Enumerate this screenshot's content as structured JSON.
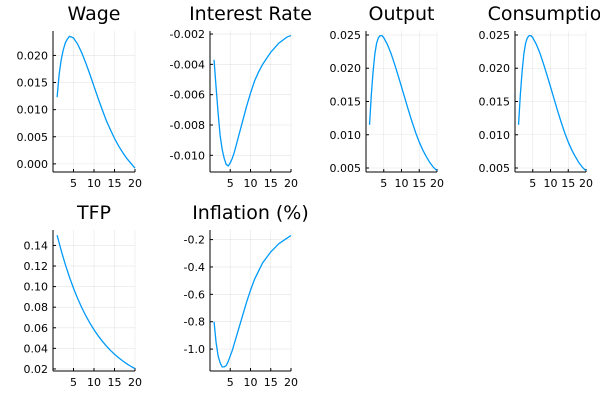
{
  "chart_data": [
    {
      "type": "line",
      "title": "Wage",
      "xlim": [
        0,
        20
      ],
      "ylim": [
        -0.0015,
        0.0245
      ],
      "xticks": [
        5,
        10,
        15,
        20
      ],
      "xtick_labels": [
        "5",
        "10",
        "15",
        "20"
      ],
      "yticks": [
        0.0,
        0.005,
        0.01,
        0.015,
        0.02
      ],
      "ytick_labels": [
        "0.000",
        "0.005",
        "0.010",
        "0.015",
        "0.020"
      ],
      "grid": true,
      "legend": "none",
      "series": [
        {
          "color": "#009af9",
          "x": [
            1,
            1.5,
            2,
            2.5,
            3,
            3.5,
            4,
            4.5,
            5,
            6,
            7,
            8,
            9,
            10,
            11,
            12,
            13,
            14,
            15,
            16,
            17,
            18,
            19,
            20
          ],
          "y": [
            0.0123,
            0.0165,
            0.0192,
            0.021,
            0.0223,
            0.023,
            0.0235,
            0.0234,
            0.0232,
            0.0221,
            0.0205,
            0.0186,
            0.0165,
            0.0143,
            0.0121,
            0.01,
            0.008,
            0.0063,
            0.0047,
            0.0033,
            0.0021,
            0.001,
            0.0001,
            -0.0008
          ]
        }
      ]
    },
    {
      "type": "line",
      "title": "Interest Rate",
      "xlim": [
        0,
        20
      ],
      "ylim": [
        -0.0111,
        -0.0018
      ],
      "xticks": [
        5,
        10,
        15,
        20
      ],
      "xtick_labels": [
        "5",
        "10",
        "15",
        "20"
      ],
      "yticks": [
        -0.01,
        -0.008,
        -0.006,
        -0.004,
        -0.002
      ],
      "ytick_labels": [
        "-0.010",
        "-0.008",
        "-0.006",
        "-0.004",
        "-0.002"
      ],
      "grid": true,
      "legend": "none",
      "series": [
        {
          "color": "#009af9",
          "x": [
            1,
            1.5,
            2,
            2.5,
            3,
            3.5,
            4,
            4.5,
            5,
            5.5,
            6,
            7,
            8,
            9,
            10,
            11,
            12,
            13,
            14,
            15,
            16,
            17,
            18,
            19,
            20
          ],
          "y": [
            -0.0037,
            -0.0055,
            -0.0072,
            -0.0087,
            -0.0096,
            -0.0102,
            -0.0106,
            -0.0107,
            -0.0105,
            -0.0102,
            -0.0098,
            -0.0088,
            -0.0078,
            -0.0068,
            -0.0059,
            -0.0051,
            -0.0045,
            -0.004,
            -0.0036,
            -0.0032,
            -0.0029,
            -0.0026,
            -0.0024,
            -0.0022,
            -0.0021
          ]
        }
      ]
    },
    {
      "type": "line",
      "title": "Output",
      "xlim": [
        0,
        20
      ],
      "ylim": [
        0.0044,
        0.0256
      ],
      "xticks": [
        5,
        10,
        15,
        20
      ],
      "xtick_labels": [
        "5",
        "10",
        "15",
        "20"
      ],
      "yticks": [
        0.005,
        0.01,
        0.015,
        0.02,
        0.025
      ],
      "ytick_labels": [
        "0.005",
        "0.010",
        "0.015",
        "0.020",
        "0.025"
      ],
      "grid": true,
      "legend": "none",
      "series": [
        {
          "color": "#009af9",
          "x": [
            1,
            1.5,
            2,
            2.5,
            3,
            3.5,
            4,
            4.5,
            5,
            6,
            7,
            8,
            9,
            10,
            11,
            12,
            13,
            14,
            15,
            16,
            17,
            18,
            19,
            20
          ],
          "y": [
            0.0115,
            0.016,
            0.0195,
            0.0222,
            0.0238,
            0.0246,
            0.0249,
            0.0249,
            0.0246,
            0.0236,
            0.0223,
            0.0207,
            0.019,
            0.0172,
            0.0154,
            0.0136,
            0.0119,
            0.0103,
            0.0089,
            0.0077,
            0.0067,
            0.0058,
            0.0051,
            0.0046
          ]
        }
      ]
    },
    {
      "type": "line",
      "title": "Consumption",
      "xlim": [
        0,
        20
      ],
      "ylim": [
        0.0044,
        0.0256
      ],
      "xticks": [
        5,
        10,
        15,
        20
      ],
      "xtick_labels": [
        "5",
        "10",
        "15",
        "20"
      ],
      "yticks": [
        0.005,
        0.01,
        0.015,
        0.02,
        0.025
      ],
      "ytick_labels": [
        "0.005",
        "0.010",
        "0.015",
        "0.020",
        "0.025"
      ],
      "grid": true,
      "legend": "none",
      "series": [
        {
          "color": "#009af9",
          "x": [
            1,
            1.5,
            2,
            2.5,
            3,
            3.5,
            4,
            4.5,
            5,
            6,
            7,
            8,
            9,
            10,
            11,
            12,
            13,
            14,
            15,
            16,
            17,
            18,
            19,
            20
          ],
          "y": [
            0.0115,
            0.016,
            0.0195,
            0.0222,
            0.0238,
            0.0246,
            0.0249,
            0.0249,
            0.0246,
            0.0236,
            0.0223,
            0.0207,
            0.019,
            0.0172,
            0.0154,
            0.0136,
            0.0119,
            0.0103,
            0.0089,
            0.0077,
            0.0067,
            0.0058,
            0.0051,
            0.0046
          ]
        }
      ]
    },
    {
      "type": "line",
      "title": "TFP",
      "xlim": [
        0,
        20
      ],
      "ylim": [
        0.018,
        0.155
      ],
      "xticks": [
        5,
        10,
        15,
        20
      ],
      "xtick_labels": [
        "5",
        "10",
        "15",
        "20"
      ],
      "yticks": [
        0.02,
        0.04,
        0.06,
        0.08,
        0.1,
        0.12,
        0.14
      ],
      "ytick_labels": [
        "0.02",
        "0.04",
        "0.06",
        "0.08",
        "0.10",
        "0.12",
        "0.14"
      ],
      "grid": true,
      "legend": "none",
      "series": [
        {
          "color": "#009af9",
          "x": [
            1,
            2,
            3,
            4,
            5,
            6,
            7,
            8,
            9,
            10,
            11,
            12,
            13,
            14,
            15,
            16,
            17,
            18,
            19,
            20
          ],
          "y": [
            0.15,
            0.135,
            0.1215,
            0.1094,
            0.0984,
            0.0886,
            0.0797,
            0.0717,
            0.0646,
            0.0581,
            0.0523,
            0.0471,
            0.0424,
            0.0381,
            0.0343,
            0.0309,
            0.0278,
            0.025,
            0.0225,
            0.0203
          ]
        }
      ]
    },
    {
      "type": "line",
      "title": "Inflation (%)",
      "xlim": [
        0,
        20
      ],
      "ylim": [
        -1.16,
        -0.13
      ],
      "xticks": [
        5,
        10,
        15,
        20
      ],
      "xtick_labels": [
        "5",
        "10",
        "15",
        "20"
      ],
      "yticks": [
        -1.0,
        -0.8,
        -0.6,
        -0.4,
        -0.2
      ],
      "ytick_labels": [
        "-1.0",
        "-0.8",
        "-0.6",
        "-0.4",
        "-0.2"
      ],
      "grid": true,
      "legend": "none",
      "series": [
        {
          "color": "#009af9",
          "x": [
            1,
            1.5,
            2,
            2.5,
            3,
            3.5,
            4,
            4.5,
            5,
            5.5,
            6,
            7,
            8,
            9,
            10,
            11,
            12,
            13,
            14,
            15,
            16,
            17,
            18,
            19,
            20
          ],
          "y": [
            -0.8,
            -0.95,
            -1.05,
            -1.1,
            -1.13,
            -1.13,
            -1.12,
            -1.09,
            -1.05,
            -1.01,
            -0.96,
            -0.86,
            -0.76,
            -0.66,
            -0.57,
            -0.49,
            -0.43,
            -0.37,
            -0.33,
            -0.29,
            -0.26,
            -0.23,
            -0.21,
            -0.19,
            -0.17
          ]
        }
      ]
    }
  ]
}
